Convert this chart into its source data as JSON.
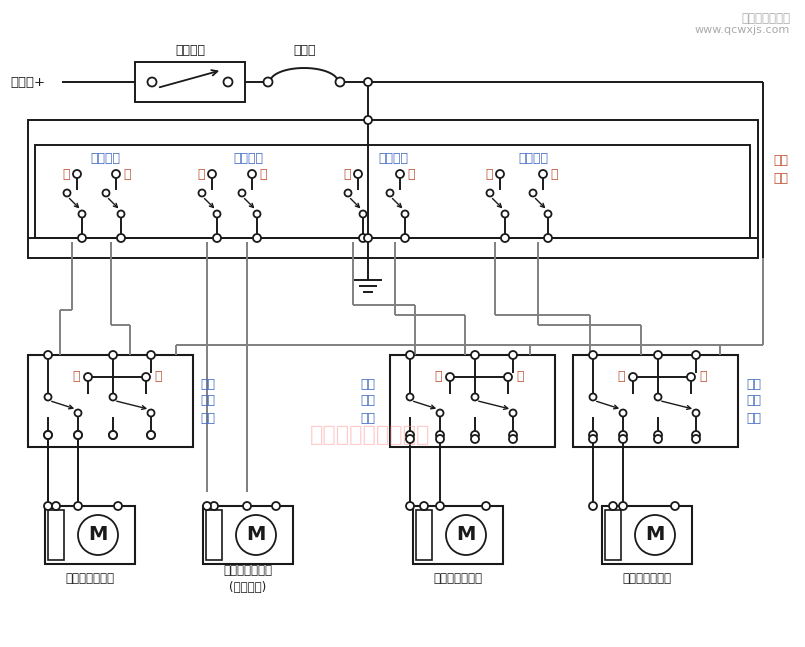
{
  "bg": "#ffffff",
  "lc": "#1a1a1a",
  "lgray": "#808080",
  "blue": "#4169c4",
  "orange": "#c05030",
  "pink": "#ff6699",
  "wm_pink": "#ff9999",
  "wm_gray": "#aaaaaa",
  "labels": {
    "battery": "蓄电池+",
    "ignition": "点火开关",
    "breaker": "断路器",
    "main_sw": "主控\n开关",
    "lh_win": "左后车窗",
    "lf_win": "左前车窗",
    "rf_win": "右前车窗",
    "rh_win": "右后车窗",
    "up": "升",
    "down": "降",
    "lh_motor": "左后车窗电动机",
    "lf_motor": "左前车窗电动机\n(驾驶员侧)",
    "rf_motor": "右前车窗电动机",
    "rh_motor": "右后车窗电动机",
    "lh_sw_lbl": "左后\n车窗\n开关",
    "rf_sw_lbl": "右前\n车窗\n开关",
    "rh_sw_lbl": "右后\n车窗\n开关",
    "watermark": "汽车维修技术与知识",
    "wm1": "汽车维修技术网",
    "wm2": "www.qcwxjs.com"
  },
  "fig_w": 8.05,
  "fig_h": 6.47,
  "dpi": 100
}
